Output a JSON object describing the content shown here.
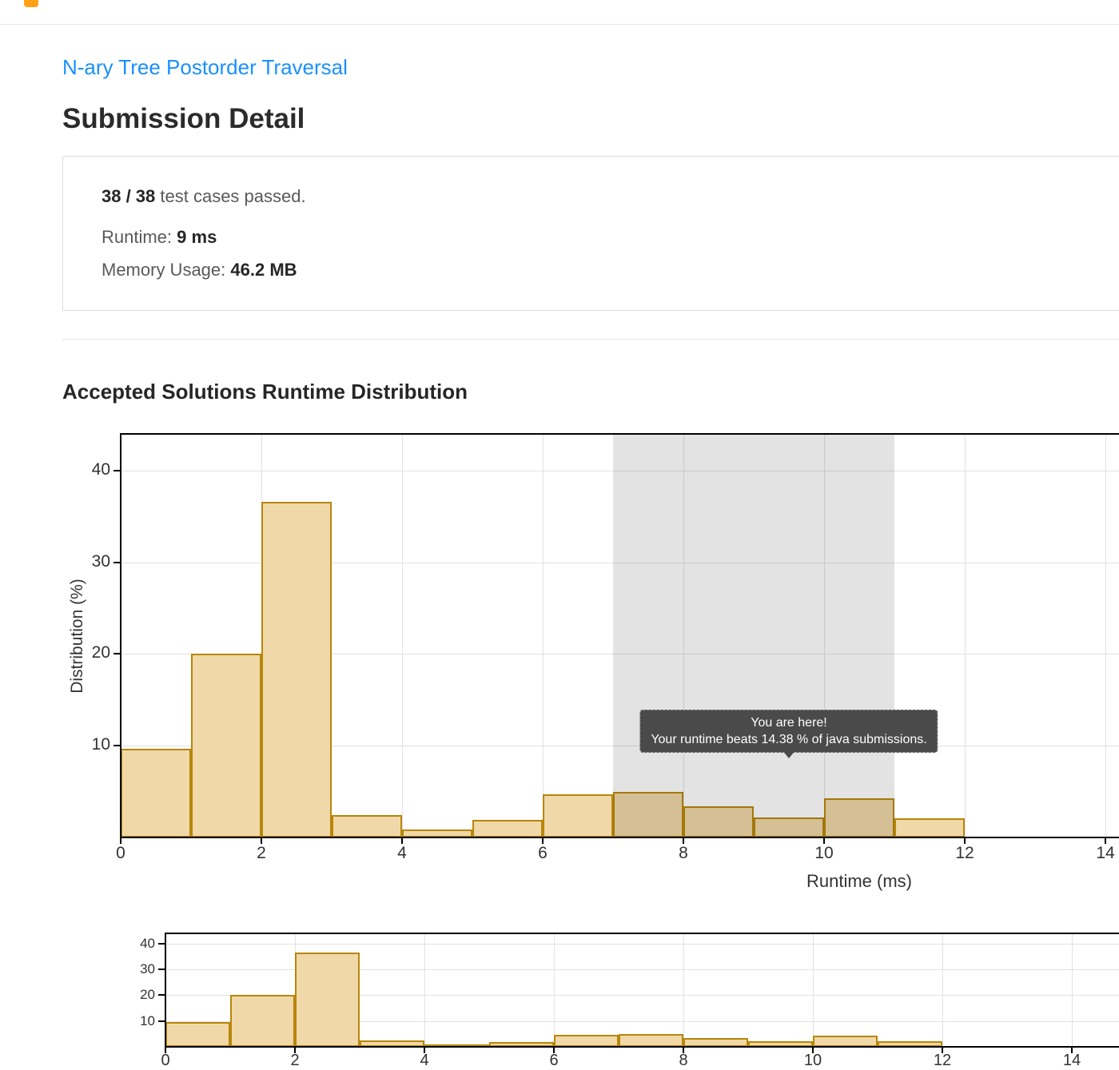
{
  "header": {
    "logo": "leetcode-logo-fragment",
    "logo_color": "#ffa116"
  },
  "breadcrumb": {
    "problem_title": "N-ary Tree Postorder Traversal"
  },
  "page": {
    "title": "Submission Detail"
  },
  "result": {
    "passed_label": "38 / 38",
    "passed_text": " test cases passed.",
    "runtime_label": "Runtime: ",
    "runtime_value": "9 ms",
    "memory_label": "Memory Usage: ",
    "memory_value": "46.2 MB"
  },
  "distribution": {
    "heading": "Accepted Solutions Runtime Distribution"
  },
  "chart_data": {
    "type": "bar",
    "title": "Accepted Solutions Runtime Distribution",
    "xlabel": "Runtime (ms)",
    "ylabel": "Distribution (%)",
    "x_ticks": [
      0,
      2,
      4,
      6,
      8,
      10,
      12,
      14
    ],
    "y_ticks": [
      10,
      20,
      30,
      40
    ],
    "xlim": [
      0,
      14.2
    ],
    "ylim": [
      0,
      44
    ],
    "grid": true,
    "bins": [
      {
        "x0": 0,
        "x1": 1,
        "value": 9.7
      },
      {
        "x0": 1,
        "x1": 2,
        "value": 20.0
      },
      {
        "x0": 2,
        "x1": 3,
        "value": 36.6
      },
      {
        "x0": 3,
        "x1": 4,
        "value": 2.4
      },
      {
        "x0": 4,
        "x1": 5,
        "value": 0.9
      },
      {
        "x0": 5,
        "x1": 6,
        "value": 1.9
      },
      {
        "x0": 6,
        "x1": 7,
        "value": 4.7
      },
      {
        "x0": 7,
        "x1": 8,
        "value": 5.0
      },
      {
        "x0": 8,
        "x1": 9,
        "value": 3.4
      },
      {
        "x0": 9,
        "x1": 10,
        "value": 2.2
      },
      {
        "x0": 10,
        "x1": 11,
        "value": 4.3
      },
      {
        "x0": 11,
        "x1": 12,
        "value": 2.1
      }
    ],
    "highlight_range": [
      7,
      11
    ],
    "tooltip": {
      "line1": "You are here!",
      "line2": "Your runtime beats 14.38 % of java submissions."
    },
    "bar_fill": "#f0d8a8",
    "bar_stroke": "#b8860b",
    "highlight_color": "rgba(0,0,0,0.11)",
    "has_minimap": true
  }
}
